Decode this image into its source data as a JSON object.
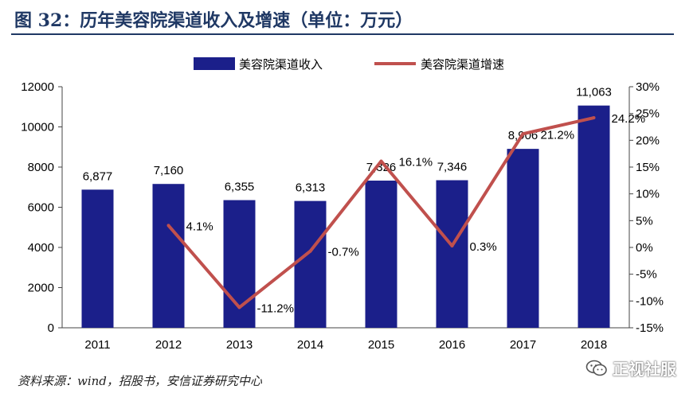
{
  "figure": {
    "title": "图 32：历年美容院渠道收入及增速（单位：万元）",
    "source": "资料来源：wind，招股书，安信证券研究中心",
    "watermark": "正视社服"
  },
  "colors": {
    "bar": "#1b1f8a",
    "line": "#c0504d",
    "title": "#1f3864"
  },
  "chart_data": {
    "type": "bar",
    "categories": [
      "2011",
      "2012",
      "2013",
      "2014",
      "2015",
      "2016",
      "2017",
      "2018"
    ],
    "series": [
      {
        "name": "美容院渠道收入",
        "type": "bar",
        "axis": "left",
        "values": [
          6877,
          7160,
          6355,
          6313,
          7326,
          7346,
          8906,
          11063
        ],
        "labels": [
          "6,877",
          "7,160",
          "6,355",
          "6,313",
          "7,326",
          "7,346",
          "8,906",
          "11,063"
        ]
      },
      {
        "name": "美容院渠道增速",
        "type": "line",
        "axis": "right",
        "values": [
          null,
          4.1,
          -11.2,
          -0.7,
          16.1,
          0.3,
          21.2,
          24.2
        ],
        "labels": [
          "",
          "4.1%",
          "-11.2%",
          "-0.7%",
          "16.1%",
          "0.3%",
          "21.2%",
          "24.2%"
        ]
      }
    ],
    "ylim": [
      0,
      12000
    ],
    "yticks": [
      "0",
      "2000",
      "4000",
      "6000",
      "8000",
      "10000",
      "12000"
    ],
    "y2lim": [
      -15,
      30
    ],
    "y2ticks": [
      "-15%",
      "-10%",
      "-5%",
      "0%",
      "5%",
      "10%",
      "15%",
      "20%",
      "25%",
      "30%"
    ],
    "legend": "top-center",
    "grid": false
  }
}
